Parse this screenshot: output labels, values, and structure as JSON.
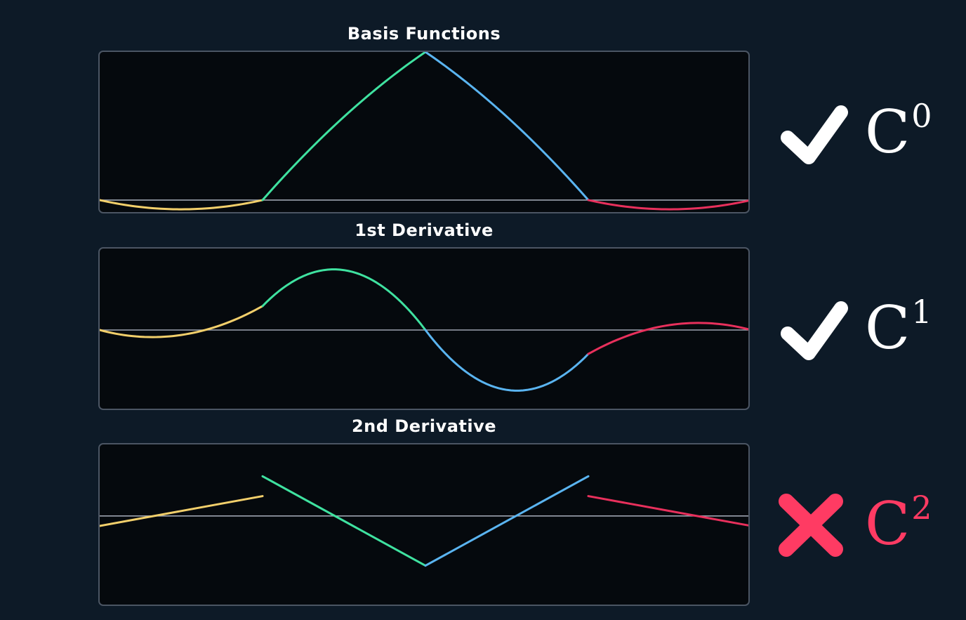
{
  "colors": {
    "background": "#0d1a27",
    "panel": "#05090d",
    "border": "#4b5563",
    "axis": "#9ca3af",
    "text": "#ffffff",
    "fail": "#ff3b63",
    "segments": [
      "#f2cf6b",
      "#3fe2a0",
      "#5ab4f0",
      "#e8305c"
    ]
  },
  "chart_data": [
    {
      "type": "line",
      "title": "Basis Functions",
      "xlim": [
        -2,
        2
      ],
      "ylim": [
        -0.1,
        1.0
      ],
      "knots": [
        -2,
        -1,
        0,
        1,
        2
      ],
      "baseline": 0,
      "series": [
        {
          "segment": 0,
          "x": [
            -2.0,
            -1.5,
            -1.0
          ],
          "y": [
            0.0,
            -0.0625,
            0.0
          ]
        },
        {
          "segment": 1,
          "x": [
            -1.0,
            -0.5,
            0.0
          ],
          "y": [
            0.0,
            0.5625,
            1.0
          ]
        },
        {
          "segment": 2,
          "x": [
            0.0,
            0.5,
            1.0
          ],
          "y": [
            1.0,
            0.5625,
            0.0
          ]
        },
        {
          "segment": 3,
          "x": [
            1.0,
            1.5,
            2.0
          ],
          "y": [
            0.0,
            -0.0625,
            0.0
          ]
        }
      ],
      "verdict": {
        "icon": "check-icon",
        "pass": true,
        "label": "C",
        "order": "0"
      }
    },
    {
      "type": "line",
      "title": "1st Derivative",
      "xlim": [
        -2,
        2
      ],
      "ylim": [
        -1.7,
        1.7
      ],
      "knots": [
        -2,
        -1,
        0,
        1,
        2
      ],
      "baseline": 0,
      "series": [
        {
          "segment": 0,
          "x": [
            -2.0,
            -1.6667,
            -1.0
          ],
          "y": [
            0.0,
            -0.1481,
            0.5
          ]
        },
        {
          "segment": 1,
          "x": [
            -1.0,
            -0.5,
            0.0
          ],
          "y": [
            0.5,
            1.25,
            0.0
          ]
        },
        {
          "segment": 2,
          "x": [
            0.0,
            0.5,
            1.0
          ],
          "y": [
            0.0,
            -1.25,
            -0.5
          ]
        },
        {
          "segment": 3,
          "x": [
            1.0,
            1.6667,
            2.0
          ],
          "y": [
            -0.5,
            0.1481,
            0.0
          ]
        }
      ],
      "verdict": {
        "icon": "check-icon",
        "pass": true,
        "label": "C",
        "order": "1"
      }
    },
    {
      "type": "line",
      "title": "2nd Derivative",
      "xlim": [
        -2,
        2
      ],
      "ylim": [
        -4.6,
        3.6
      ],
      "knots": [
        -2,
        -1,
        0,
        1,
        2
      ],
      "baseline": 0,
      "series": [
        {
          "segment": 0,
          "x": [
            -2.0,
            -1.0
          ],
          "y": [
            -0.5,
            1.0
          ]
        },
        {
          "segment": 1,
          "x": [
            -1.0,
            0.0
          ],
          "y": [
            2.0,
            -2.5
          ]
        },
        {
          "segment": 2,
          "x": [
            0.0,
            1.0
          ],
          "y": [
            -2.5,
            2.0
          ]
        },
        {
          "segment": 3,
          "x": [
            1.0,
            2.0
          ],
          "y": [
            1.0,
            -0.5
          ]
        }
      ],
      "verdict": {
        "icon": "cross-icon",
        "pass": false,
        "label": "C",
        "order": "2"
      }
    }
  ]
}
